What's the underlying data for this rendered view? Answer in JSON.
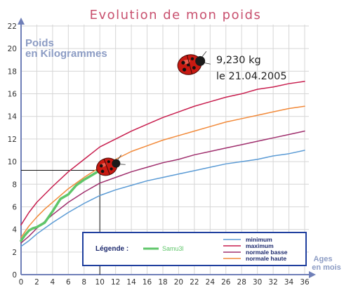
{
  "chart_data": {
    "type": "line",
    "title": "Evolution de mon poids",
    "ylabel_line1": "Poids",
    "ylabel_line2": "en Kilogrammes",
    "xlabel_line1": "Ages",
    "xlabel_line2": "en mois",
    "xlim": [
      0,
      36
    ],
    "ylim": [
      0,
      22
    ],
    "x_ticks": [
      0,
      2,
      4,
      6,
      8,
      10,
      12,
      14,
      16,
      18,
      20,
      22,
      24,
      26,
      28,
      30,
      32,
      34,
      36
    ],
    "y_ticks": [
      0,
      2,
      4,
      6,
      8,
      10,
      12,
      14,
      16,
      18,
      20,
      22
    ],
    "grid": true,
    "legend_title": "Légende :",
    "series": [
      {
        "name": "minimum",
        "color": "#5b9bd5",
        "x": [
          0,
          1,
          2,
          3,
          4,
          6,
          8,
          10,
          12,
          14,
          16,
          18,
          20,
          22,
          24,
          26,
          28,
          30,
          32,
          34,
          36
        ],
        "y": [
          2.5,
          3.0,
          3.6,
          4.1,
          4.6,
          5.5,
          6.3,
          7.0,
          7.5,
          7.9,
          8.3,
          8.6,
          8.9,
          9.2,
          9.5,
          9.8,
          10.0,
          10.2,
          10.5,
          10.7,
          11.0
        ]
      },
      {
        "name": "maximum",
        "color": "#c81e4e",
        "x": [
          0,
          1,
          2,
          3,
          4,
          6,
          8,
          10,
          12,
          14,
          16,
          18,
          20,
          22,
          24,
          26,
          28,
          30,
          32,
          34,
          36
        ],
        "y": [
          4.4,
          5.5,
          6.4,
          7.1,
          7.8,
          9.1,
          10.2,
          11.3,
          12.0,
          12.7,
          13.3,
          13.9,
          14.4,
          14.9,
          15.3,
          15.7,
          16.0,
          16.4,
          16.6,
          16.9,
          17.1
        ]
      },
      {
        "name": "normale basse",
        "color": "#a0306e",
        "x": [
          0,
          1,
          2,
          3,
          4,
          6,
          8,
          10,
          12,
          14,
          16,
          18,
          20,
          22,
          24,
          26,
          28,
          30,
          32,
          34,
          36
        ],
        "y": [
          2.8,
          3.4,
          4.1,
          4.7,
          5.3,
          6.4,
          7.3,
          8.1,
          8.6,
          9.1,
          9.5,
          9.9,
          10.2,
          10.6,
          10.9,
          11.2,
          11.5,
          11.8,
          12.1,
          12.4,
          12.7
        ]
      },
      {
        "name": "normale haute",
        "color": "#f28a3a",
        "x": [
          0,
          1,
          2,
          3,
          4,
          6,
          8,
          10,
          12,
          14,
          16,
          18,
          20,
          22,
          24,
          26,
          28,
          30,
          32,
          34,
          36
        ],
        "y": [
          3.3,
          4.3,
          5.1,
          5.8,
          6.4,
          7.6,
          8.6,
          9.5,
          10.2,
          10.9,
          11.4,
          11.9,
          12.3,
          12.7,
          13.1,
          13.5,
          13.8,
          14.1,
          14.4,
          14.7,
          14.9
        ]
      },
      {
        "name": "Samu3l",
        "color": "#5fc66a",
        "x": [
          0,
          0.5,
          1,
          1.5,
          2,
          2.5,
          3,
          4,
          5,
          6,
          7,
          8,
          9,
          10
        ],
        "y": [
          3.0,
          3.5,
          3.9,
          4.1,
          4.2,
          4.4,
          4.6,
          5.6,
          6.7,
          7.1,
          7.9,
          8.4,
          8.8,
          9.23
        ]
      }
    ],
    "annotation": {
      "weight": "9,230 kg",
      "date": "le 21.04.2005",
      "x": 10,
      "y": 9.23
    }
  }
}
